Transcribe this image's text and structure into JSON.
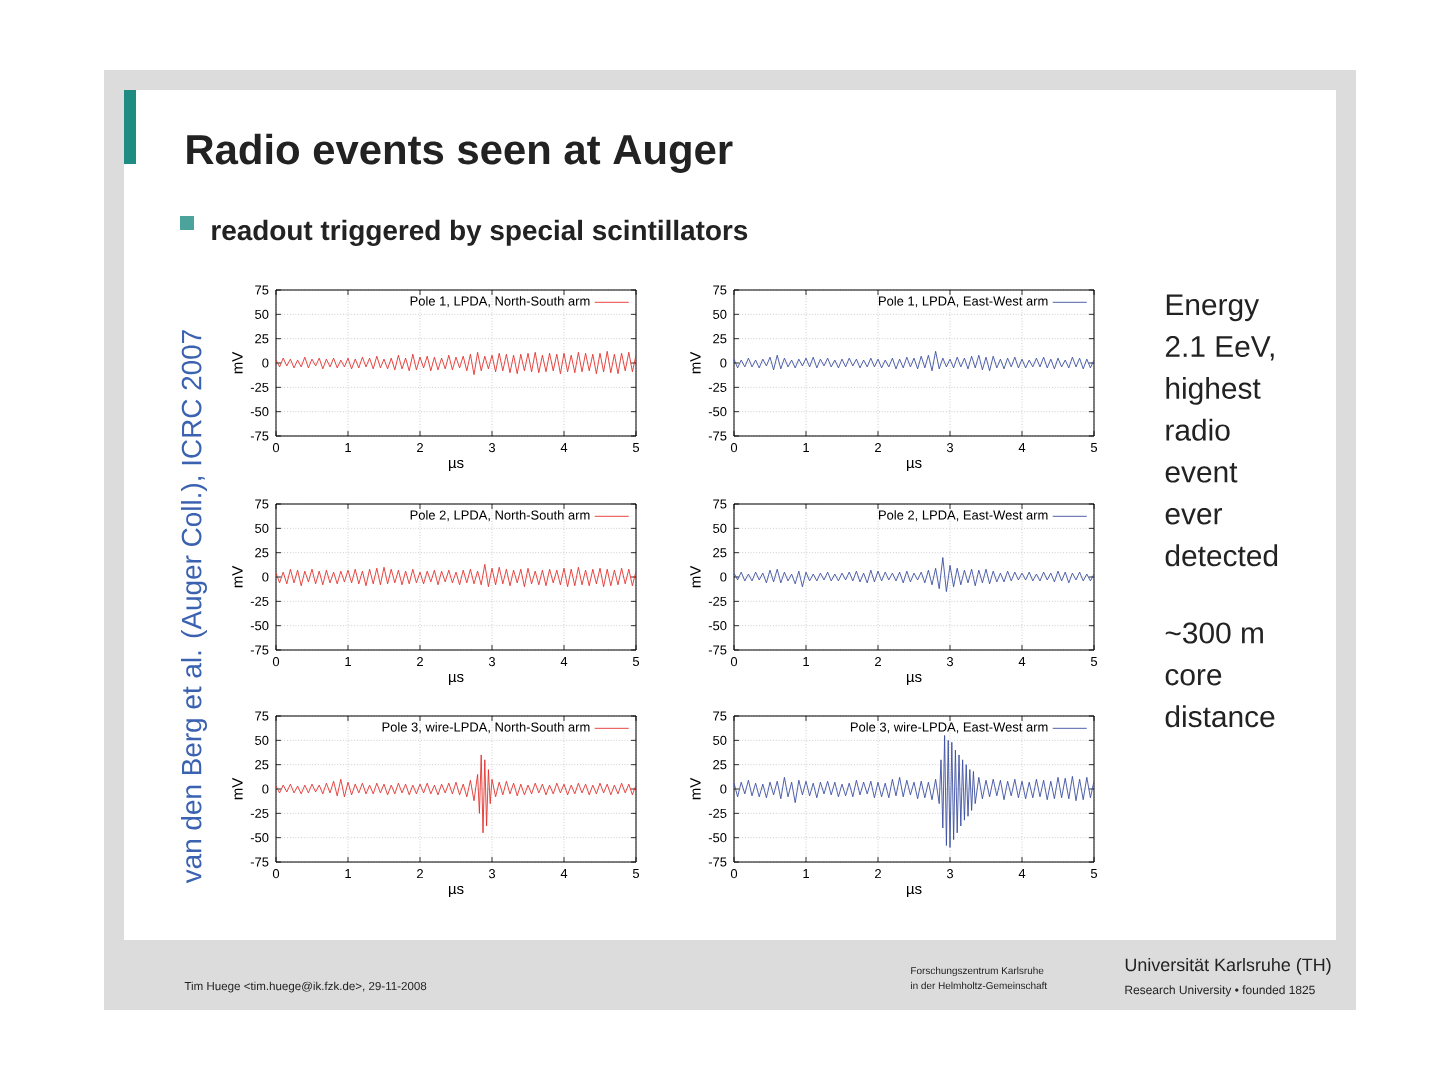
{
  "chart_data": [
    {
      "type": "other",
      "title": "Radio events seen at Auger",
      "subtitle": "readout triggered by special scintillators",
      "annotations": [
        "Energy 2.1 EeV, highest radio event ever detected",
        "~300 m core distance",
        "van den Berg et al. (Auger Coll.), ICRC 2007",
        "Tim Huege <tim.huege@ik.fzk.de>, 29-11-2008",
        "Forschungszentrum Karlsruhe",
        "in der Helmholtz-Gemeinschaft",
        "Universität Karlsruhe (TH)",
        "Research University • founded 1825"
      ]
    },
    {
      "type": "line",
      "xlabel": "µs",
      "ylabel": "mV",
      "xlim": [
        0,
        5
      ],
      "ylim": [
        -75,
        75
      ],
      "xticks": [
        0,
        1,
        2,
        3,
        4,
        5
      ],
      "yticks": [
        -75,
        -50,
        -25,
        0,
        25,
        50,
        75
      ],
      "grid": true,
      "legend": "top right",
      "x": [
        0,
        0.05,
        0.1,
        0.15,
        0.2,
        0.25,
        0.3,
        0.35,
        0.4,
        0.45,
        0.5,
        0.55,
        0.6,
        0.65,
        0.7,
        0.75,
        0.8,
        0.85,
        0.9,
        0.95,
        1,
        1.05,
        1.1,
        1.15,
        1.2,
        1.25,
        1.3,
        1.35,
        1.4,
        1.45,
        1.5,
        1.55,
        1.6,
        1.65,
        1.7,
        1.75,
        1.8,
        1.85,
        1.9,
        1.95,
        2,
        2.05,
        2.1,
        2.15,
        2.2,
        2.25,
        2.3,
        2.35,
        2.4,
        2.45,
        2.5,
        2.55,
        2.6,
        2.65,
        2.7,
        2.75,
        2.8,
        2.85,
        2.9,
        2.95,
        3,
        3.05,
        3.1,
        3.15,
        3.2,
        3.25,
        3.3,
        3.35,
        3.4,
        3.45,
        3.5,
        3.55,
        3.6,
        3.65,
        3.7,
        3.75,
        3.8,
        3.85,
        3.9,
        3.95,
        4,
        4.05,
        4.1,
        4.15,
        4.2,
        4.25,
        4.3,
        4.35,
        4.4,
        4.45,
        4.5,
        4.55,
        4.6,
        4.65,
        4.7,
        4.75,
        4.8,
        4.85,
        4.9,
        4.95,
        5
      ],
      "series": [
        {
          "name": "Pole 1, LPDA, North-South arm",
          "color": "#e3312d",
          "values": [
            3,
            -4,
            5,
            -3,
            4,
            -5,
            3,
            -4,
            6,
            -5,
            4,
            -3,
            5,
            -6,
            4,
            -4,
            5,
            -5,
            3,
            -4,
            5,
            -6,
            4,
            -5,
            6,
            -4,
            5,
            -6,
            7,
            -5,
            4,
            -6,
            5,
            -7,
            8,
            -6,
            5,
            -8,
            9,
            -7,
            6,
            -5,
            7,
            -8,
            6,
            -7,
            5,
            -6,
            8,
            -7,
            6,
            -5,
            7,
            -8,
            9,
            -12,
            11,
            -8,
            7,
            -6,
            8,
            -9,
            10,
            -8,
            9,
            -10,
            8,
            -11,
            9,
            -8,
            10,
            -9,
            11,
            -10,
            8,
            -9,
            10,
            -8,
            9,
            -11,
            10,
            -9,
            8,
            -10,
            11,
            -9,
            10,
            -8,
            9,
            -11,
            10,
            -9,
            12,
            -10,
            9,
            -11,
            10,
            -8,
            11,
            -9,
            8
          ]
        }
      ]
    },
    {
      "type": "line",
      "xlabel": "µs",
      "ylabel": "mV",
      "xlim": [
        0,
        5
      ],
      "ylim": [
        -75,
        75
      ],
      "xticks": [
        0,
        1,
        2,
        3,
        4,
        5
      ],
      "yticks": [
        -75,
        -50,
        -25,
        0,
        25,
        50,
        75
      ],
      "grid": true,
      "legend": "top right",
      "x": [
        0,
        0.05,
        0.1,
        0.15,
        0.2,
        0.25,
        0.3,
        0.35,
        0.4,
        0.45,
        0.5,
        0.55,
        0.6,
        0.65,
        0.7,
        0.75,
        0.8,
        0.85,
        0.9,
        0.95,
        1,
        1.05,
        1.1,
        1.15,
        1.2,
        1.25,
        1.3,
        1.35,
        1.4,
        1.45,
        1.5,
        1.55,
        1.6,
        1.65,
        1.7,
        1.75,
        1.8,
        1.85,
        1.9,
        1.95,
        2,
        2.05,
        2.1,
        2.15,
        2.2,
        2.25,
        2.3,
        2.35,
        2.4,
        2.45,
        2.5,
        2.55,
        2.6,
        2.65,
        2.7,
        2.75,
        2.8,
        2.85,
        2.9,
        2.95,
        3,
        3.05,
        3.1,
        3.15,
        3.2,
        3.25,
        3.3,
        3.35,
        3.4,
        3.45,
        3.5,
        3.55,
        3.6,
        3.65,
        3.7,
        3.75,
        3.8,
        3.85,
        3.9,
        3.95,
        4,
        4.05,
        4.1,
        4.15,
        4.2,
        4.25,
        4.3,
        4.35,
        4.4,
        4.45,
        4.5,
        4.55,
        4.6,
        4.65,
        4.7,
        4.75,
        4.8,
        4.85,
        4.9,
        4.95,
        5
      ],
      "series": [
        {
          "name": "Pole 1, LPDA, East-West arm",
          "color": "#3b4ea0",
          "values": [
            4,
            -5,
            3,
            -4,
            5,
            -4,
            3,
            -5,
            4,
            -3,
            6,
            -7,
            8,
            -6,
            5,
            -4,
            3,
            -5,
            4,
            -3,
            5,
            -4,
            6,
            -5,
            4,
            -3,
            5,
            -4,
            3,
            -5,
            4,
            -4,
            5,
            -3,
            4,
            -5,
            3,
            -4,
            5,
            -4,
            4,
            -5,
            3,
            -4,
            5,
            -6,
            4,
            -5,
            6,
            -4,
            5,
            -6,
            7,
            -5,
            8,
            -8,
            12,
            -6,
            5,
            -4,
            4,
            -5,
            6,
            -4,
            5,
            -6,
            7,
            -5,
            8,
            -7,
            6,
            -8,
            7,
            -5,
            4,
            -6,
            5,
            -4,
            6,
            -5,
            4,
            -5,
            3,
            -4,
            5,
            -4,
            6,
            -5,
            4,
            -6,
            5,
            -4,
            3,
            -5,
            6,
            -4,
            5,
            -6,
            4,
            -5,
            3
          ]
        }
      ]
    },
    {
      "type": "line",
      "xlabel": "µs",
      "ylabel": "mV",
      "xlim": [
        0,
        5
      ],
      "ylim": [
        -75,
        75
      ],
      "xticks": [
        0,
        1,
        2,
        3,
        4,
        5
      ],
      "yticks": [
        -75,
        -50,
        -25,
        0,
        25,
        50,
        75
      ],
      "grid": true,
      "legend": "top right",
      "x": [
        0,
        0.05,
        0.1,
        0.15,
        0.2,
        0.25,
        0.3,
        0.35,
        0.4,
        0.45,
        0.5,
        0.55,
        0.6,
        0.65,
        0.7,
        0.75,
        0.8,
        0.85,
        0.9,
        0.95,
        1,
        1.05,
        1.1,
        1.15,
        1.2,
        1.25,
        1.3,
        1.35,
        1.4,
        1.45,
        1.5,
        1.55,
        1.6,
        1.65,
        1.7,
        1.75,
        1.8,
        1.85,
        1.9,
        1.95,
        2,
        2.05,
        2.1,
        2.15,
        2.2,
        2.25,
        2.3,
        2.35,
        2.4,
        2.45,
        2.5,
        2.55,
        2.6,
        2.65,
        2.7,
        2.75,
        2.8,
        2.85,
        2.9,
        2.95,
        3,
        3.05,
        3.1,
        3.15,
        3.2,
        3.25,
        3.3,
        3.35,
        3.4,
        3.45,
        3.5,
        3.55,
        3.6,
        3.65,
        3.7,
        3.75,
        3.8,
        3.85,
        3.9,
        3.95,
        4,
        4.05,
        4.1,
        4.15,
        4.2,
        4.25,
        4.3,
        4.35,
        4.4,
        4.45,
        4.5,
        4.55,
        4.6,
        4.65,
        4.7,
        4.75,
        4.8,
        4.85,
        4.9,
        4.95,
        5
      ],
      "series": [
        {
          "name": "Pole 2, LPDA, North-South arm",
          "color": "#e3312d",
          "values": [
            4,
            -6,
            5,
            -7,
            8,
            -6,
            7,
            -9,
            6,
            -5,
            8,
            -7,
            6,
            -8,
            7,
            -6,
            5,
            -7,
            6,
            -5,
            7,
            -6,
            8,
            -7,
            6,
            -9,
            8,
            -7,
            9,
            -8,
            10,
            -7,
            8,
            -6,
            7,
            -8,
            6,
            -7,
            8,
            -6,
            5,
            -7,
            6,
            -5,
            7,
            -8,
            6,
            -5,
            7,
            -6,
            5,
            -8,
            7,
            -6,
            8,
            -7,
            6,
            -8,
            13,
            -10,
            9,
            -8,
            10,
            -7,
            8,
            -9,
            7,
            -6,
            8,
            -10,
            9,
            -7,
            6,
            -8,
            7,
            -9,
            8,
            -6,
            7,
            -8,
            9,
            -10,
            8,
            -9,
            10,
            -8,
            7,
            -9,
            8,
            -7,
            9,
            -10,
            8,
            -9,
            7,
            -8,
            9,
            -7,
            8,
            -9,
            6
          ]
        }
      ]
    },
    {
      "type": "line",
      "xlabel": "µs",
      "ylabel": "mV",
      "xlim": [
        0,
        5
      ],
      "ylim": [
        -75,
        75
      ],
      "xticks": [
        0,
        1,
        2,
        3,
        4,
        5
      ],
      "yticks": [
        -75,
        -50,
        -25,
        0,
        25,
        50,
        75
      ],
      "grid": true,
      "legend": "top right",
      "x": [
        0,
        0.05,
        0.1,
        0.15,
        0.2,
        0.25,
        0.3,
        0.35,
        0.4,
        0.45,
        0.5,
        0.55,
        0.6,
        0.65,
        0.7,
        0.75,
        0.8,
        0.85,
        0.9,
        0.95,
        1,
        1.05,
        1.1,
        1.15,
        1.2,
        1.25,
        1.3,
        1.35,
        1.4,
        1.45,
        1.5,
        1.55,
        1.6,
        1.65,
        1.7,
        1.75,
        1.8,
        1.85,
        1.9,
        1.95,
        2,
        2.05,
        2.1,
        2.15,
        2.2,
        2.25,
        2.3,
        2.35,
        2.4,
        2.45,
        2.5,
        2.55,
        2.6,
        2.65,
        2.7,
        2.75,
        2.8,
        2.85,
        2.9,
        2.95,
        3,
        3.05,
        3.1,
        3.15,
        3.2,
        3.25,
        3.3,
        3.35,
        3.4,
        3.45,
        3.5,
        3.55,
        3.6,
        3.65,
        3.7,
        3.75,
        3.8,
        3.85,
        3.9,
        3.95,
        4,
        4.05,
        4.1,
        4.15,
        4.2,
        4.25,
        4.3,
        4.35,
        4.4,
        4.45,
        4.5,
        4.55,
        4.6,
        4.65,
        4.7,
        4.75,
        4.8,
        4.85,
        4.9,
        4.95,
        5
      ],
      "series": [
        {
          "name": "Pole 2, LPDA, East-West arm",
          "color": "#3b4ea0",
          "values": [
            4,
            -3,
            5,
            -4,
            3,
            -4,
            5,
            -3,
            4,
            -6,
            7,
            -5,
            8,
            -6,
            5,
            -4,
            3,
            -7,
            6,
            -10,
            5,
            -4,
            3,
            -4,
            4,
            -3,
            5,
            -4,
            3,
            -4,
            4,
            -3,
            5,
            -4,
            6,
            -5,
            4,
            -6,
            7,
            -5,
            6,
            -4,
            5,
            -3,
            4,
            -4,
            5,
            -6,
            6,
            -5,
            4,
            -3,
            5,
            -6,
            7,
            -8,
            9,
            -12,
            20,
            -15,
            12,
            -10,
            9,
            -8,
            7,
            -6,
            8,
            -9,
            7,
            -6,
            8,
            -7,
            6,
            -5,
            4,
            -5,
            6,
            -4,
            5,
            -3,
            4,
            -3,
            5,
            -4,
            3,
            -4,
            5,
            -3,
            4,
            -5,
            6,
            -4,
            5,
            -6,
            4,
            -3,
            5,
            -4,
            3,
            -4,
            3
          ]
        }
      ]
    },
    {
      "type": "line",
      "xlabel": "µs",
      "ylabel": "mV",
      "xlim": [
        0,
        5
      ],
      "ylim": [
        -75,
        75
      ],
      "xticks": [
        0,
        1,
        2,
        3,
        4,
        5
      ],
      "yticks": [
        -75,
        -50,
        -25,
        0,
        25,
        50,
        75
      ],
      "grid": true,
      "legend": "top right",
      "x": [
        0,
        0.05,
        0.1,
        0.15,
        0.2,
        0.25,
        0.3,
        0.35,
        0.4,
        0.45,
        0.5,
        0.55,
        0.6,
        0.65,
        0.7,
        0.75,
        0.8,
        0.85,
        0.9,
        0.95,
        1,
        1.05,
        1.1,
        1.15,
        1.2,
        1.25,
        1.3,
        1.35,
        1.4,
        1.45,
        1.5,
        1.55,
        1.6,
        1.65,
        1.7,
        1.75,
        1.8,
        1.85,
        1.9,
        1.95,
        2,
        2.05,
        2.1,
        2.15,
        2.2,
        2.25,
        2.3,
        2.35,
        2.4,
        2.45,
        2.5,
        2.55,
        2.6,
        2.65,
        2.7,
        2.75,
        2.8,
        2.825,
        2.85,
        2.875,
        2.9,
        2.925,
        2.95,
        2.975,
        3,
        3.05,
        3.1,
        3.15,
        3.2,
        3.25,
        3.3,
        3.35,
        3.4,
        3.45,
        3.5,
        3.55,
        3.6,
        3.65,
        3.7,
        3.75,
        3.8,
        3.85,
        3.9,
        3.95,
        4,
        4.05,
        4.1,
        4.15,
        4.2,
        4.25,
        4.3,
        4.35,
        4.4,
        4.45,
        4.5,
        4.55,
        4.6,
        4.65,
        4.7,
        4.75,
        4.8,
        4.85,
        4.9,
        4.95,
        5
      ],
      "series": [
        {
          "name": "Pole 3, wire-LPDA, North-South arm",
          "color": "#e3312d",
          "values": [
            3,
            -4,
            4,
            -3,
            5,
            -4,
            3,
            -5,
            4,
            -4,
            5,
            -3,
            4,
            -5,
            6,
            -4,
            8,
            -7,
            10,
            -8,
            7,
            -6,
            5,
            -4,
            6,
            -5,
            4,
            -5,
            6,
            -4,
            5,
            -6,
            4,
            -5,
            6,
            -4,
            5,
            -6,
            4,
            -5,
            5,
            -4,
            6,
            -5,
            4,
            -6,
            5,
            -4,
            6,
            -5,
            7,
            -6,
            5,
            -8,
            9,
            -12,
            15,
            -25,
            35,
            -45,
            30,
            -38,
            20,
            -15,
            10,
            -8,
            7,
            -6,
            8,
            -5,
            6,
            -7,
            5,
            -6,
            4,
            -5,
            6,
            -4,
            5,
            -6,
            4,
            -5,
            6,
            -4,
            5,
            -6,
            4,
            -5,
            6,
            -4,
            5,
            -6,
            4,
            -5,
            6,
            -4,
            5,
            -6,
            4,
            -5,
            6,
            -4,
            5,
            -6,
            4
          ]
        }
      ]
    },
    {
      "type": "line",
      "xlabel": "µs",
      "ylabel": "mV",
      "xlim": [
        0,
        5
      ],
      "ylim": [
        -75,
        75
      ],
      "xticks": [
        0,
        1,
        2,
        3,
        4,
        5
      ],
      "yticks": [
        -75,
        -50,
        -25,
        0,
        25,
        50,
        75
      ],
      "grid": true,
      "legend": "top right",
      "x": [
        0,
        0.05,
        0.1,
        0.15,
        0.2,
        0.25,
        0.3,
        0.35,
        0.4,
        0.45,
        0.5,
        0.55,
        0.6,
        0.65,
        0.7,
        0.75,
        0.8,
        0.85,
        0.9,
        0.95,
        1,
        1.05,
        1.1,
        1.15,
        1.2,
        1.25,
        1.3,
        1.35,
        1.4,
        1.45,
        1.5,
        1.55,
        1.6,
        1.65,
        1.7,
        1.75,
        1.8,
        1.85,
        1.9,
        1.95,
        2,
        2.05,
        2.1,
        2.15,
        2.2,
        2.25,
        2.3,
        2.35,
        2.4,
        2.45,
        2.5,
        2.55,
        2.6,
        2.65,
        2.7,
        2.75,
        2.8,
        2.85,
        2.875,
        2.9,
        2.925,
        2.95,
        2.975,
        3,
        3.025,
        3.05,
        3.075,
        3.1,
        3.125,
        3.15,
        3.175,
        3.2,
        3.225,
        3.25,
        3.275,
        3.3,
        3.325,
        3.35,
        3.4,
        3.45,
        3.5,
        3.55,
        3.6,
        3.65,
        3.7,
        3.75,
        3.8,
        3.85,
        3.9,
        3.95,
        4,
        4.05,
        4.1,
        4.15,
        4.2,
        4.25,
        4.3,
        4.35,
        4.4,
        4.45,
        4.5,
        4.55,
        4.6,
        4.65,
        4.7,
        4.75,
        4.8,
        4.85,
        4.9,
        4.95,
        5
      ],
      "series": [
        {
          "name": "Pole 3, wire-LPDA, East-West arm",
          "color": "#3b4ea0",
          "values": [
            6,
            -8,
            7,
            -5,
            9,
            -7,
            6,
            -8,
            5,
            -9,
            7,
            -6,
            8,
            -10,
            12,
            -8,
            7,
            -14,
            9,
            -6,
            8,
            -7,
            6,
            -9,
            7,
            -5,
            8,
            -6,
            7,
            -8,
            5,
            -7,
            6,
            -8,
            9,
            -6,
            7,
            -5,
            8,
            -9,
            7,
            -8,
            6,
            -9,
            10,
            -7,
            12,
            -8,
            9,
            -6,
            7,
            -10,
            8,
            -9,
            7,
            -11,
            10,
            -15,
            30,
            -40,
            55,
            -58,
            50,
            -60,
            48,
            -52,
            40,
            -45,
            35,
            -38,
            30,
            -32,
            25,
            -28,
            20,
            -22,
            18,
            -15,
            12,
            -10,
            9,
            -8,
            10,
            -7,
            9,
            -11,
            8,
            -7,
            10,
            -9,
            8,
            -10,
            7,
            -9,
            10,
            -8,
            9,
            -11,
            8,
            -10,
            12,
            -9,
            11,
            -10,
            13,
            -12,
            10,
            -11,
            12,
            -9,
            8
          ]
        }
      ]
    }
  ]
}
